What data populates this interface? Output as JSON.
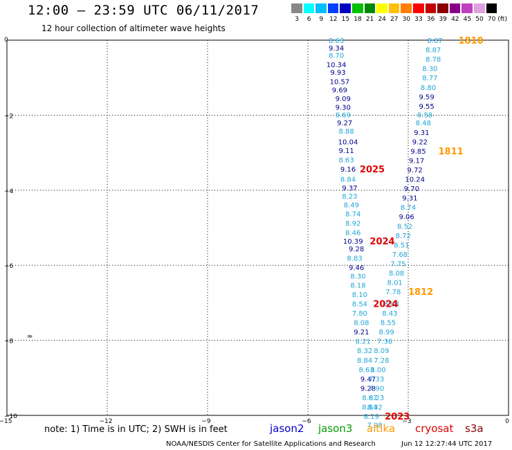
{
  "title": "12:00 – 23:59 UTC 06/11/2017",
  "subtitle": "12 hour collection of altimeter wave heights",
  "color_scale": {
    "unit": "(ft)",
    "swatches": [
      {
        "label": "3",
        "color": "#888888"
      },
      {
        "label": "6",
        "color": "#00ffff"
      },
      {
        "label": "9",
        "color": "#00bfff"
      },
      {
        "label": "12",
        "color": "#0040ff"
      },
      {
        "label": "15",
        "color": "#0000c0"
      },
      {
        "label": "18",
        "color": "#00c000"
      },
      {
        "label": "21",
        "color": "#008800"
      },
      {
        "label": "24",
        "color": "#ffff00"
      },
      {
        "label": "27",
        "color": "#ffc000"
      },
      {
        "label": "30",
        "color": "#ff8000"
      },
      {
        "label": "33",
        "color": "#ff0000"
      },
      {
        "label": "36",
        "color": "#c00000"
      },
      {
        "label": "39",
        "color": "#880000"
      },
      {
        "label": "42",
        "color": "#880088"
      },
      {
        "label": "45",
        "color": "#c040c0"
      },
      {
        "label": "50",
        "color": "#e0a0e0"
      },
      {
        "label": "70",
        "color": "#000000"
      }
    ]
  },
  "map": {
    "lon_range": [
      -15,
      0
    ],
    "lat_range": [
      -10,
      0
    ],
    "x_ticks": [
      -15,
      -12,
      -9,
      -6,
      -3,
      0
    ],
    "y_ticks": [
      0,
      -2,
      -4,
      -6,
      -8,
      -10
    ],
    "x_tick_labels": [
      "−15",
      "−12",
      "−9",
      "−6",
      "−3",
      "0"
    ],
    "y_tick_labels": [
      "0",
      "−2",
      "−4",
      "−6",
      "−8",
      "−10"
    ],
    "land_marker": {
      "lon": -14.4,
      "lat": -7.95,
      "label": "≈"
    }
  },
  "tracks": {
    "left": {
      "color_light": "#1fa5d8",
      "color_dark": "#00008b",
      "points": [
        {
          "v": "8.63",
          "lon": -5.15,
          "lat": 0.0,
          "c": "light"
        },
        {
          "v": "9.34",
          "lon": -5.15,
          "lat": -0.2,
          "c": "dark"
        },
        {
          "v": "8.70",
          "lon": -5.15,
          "lat": -0.4,
          "c": "light"
        },
        {
          "v": "10.34",
          "lon": -5.15,
          "lat": -0.65,
          "c": "dark"
        },
        {
          "v": "9.93",
          "lon": -5.1,
          "lat": -0.85,
          "c": "dark"
        },
        {
          "v": "10.57",
          "lon": -5.05,
          "lat": -1.1,
          "c": "dark"
        },
        {
          "v": "9.69",
          "lon": -5.05,
          "lat": -1.32,
          "c": "dark"
        },
        {
          "v": "9.09",
          "lon": -4.95,
          "lat": -1.55,
          "c": "dark"
        },
        {
          "v": "9.30",
          "lon": -4.95,
          "lat": -1.78,
          "c": "dark"
        },
        {
          "v": "8.69",
          "lon": -4.95,
          "lat": -1.98,
          "c": "light"
        },
        {
          "v": "9.27",
          "lon": -4.9,
          "lat": -2.2,
          "c": "dark"
        },
        {
          "v": "8.88",
          "lon": -4.85,
          "lat": -2.42,
          "c": "light"
        },
        {
          "v": "10.04",
          "lon": -4.8,
          "lat": -2.7,
          "c": "dark"
        },
        {
          "v": "9.11",
          "lon": -4.85,
          "lat": -2.93,
          "c": "dark"
        },
        {
          "v": "8.63",
          "lon": -4.85,
          "lat": -3.18,
          "c": "light"
        },
        {
          "v": "9.16",
          "lon": -4.8,
          "lat": -3.43,
          "c": "dark"
        },
        {
          "v": "8.84",
          "lon": -4.8,
          "lat": -3.7,
          "c": "light"
        },
        {
          "v": "9.37",
          "lon": -4.75,
          "lat": -3.93,
          "c": "dark"
        },
        {
          "v": "8.23",
          "lon": -4.75,
          "lat": -4.15,
          "c": "light"
        },
        {
          "v": "8.49",
          "lon": -4.7,
          "lat": -4.38,
          "c": "light"
        },
        {
          "v": "8.74",
          "lon": -4.65,
          "lat": -4.62,
          "c": "light"
        },
        {
          "v": "8.92",
          "lon": -4.65,
          "lat": -4.87,
          "c": "light"
        },
        {
          "v": "8.46",
          "lon": -4.65,
          "lat": -5.12,
          "c": "light"
        },
        {
          "v": "10.39",
          "lon": -4.65,
          "lat": -5.35,
          "c": "dark"
        },
        {
          "v": "9.28",
          "lon": -4.55,
          "lat": -5.55,
          "c": "dark"
        },
        {
          "v": "8.83",
          "lon": -4.6,
          "lat": -5.8,
          "c": "light"
        },
        {
          "v": "9.46",
          "lon": -4.55,
          "lat": -6.05,
          "c": "dark"
        },
        {
          "v": "8.30",
          "lon": -4.5,
          "lat": -6.28,
          "c": "light"
        },
        {
          "v": "8.18",
          "lon": -4.5,
          "lat": -6.52,
          "c": "light"
        },
        {
          "v": "8.10",
          "lon": -4.45,
          "lat": -6.77,
          "c": "light"
        },
        {
          "v": "8.54",
          "lon": -4.45,
          "lat": -7.02,
          "c": "light"
        },
        {
          "v": "7.80",
          "lon": -4.45,
          "lat": -7.27,
          "c": "light"
        },
        {
          "v": "8.08",
          "lon": -4.4,
          "lat": -7.52,
          "c": "light"
        },
        {
          "v": "9.21",
          "lon": -4.4,
          "lat": -7.77,
          "c": "dark"
        },
        {
          "v": "8.21",
          "lon": -4.35,
          "lat": -8.02,
          "c": "light"
        },
        {
          "v": "8.32",
          "lon": -4.3,
          "lat": -8.27,
          "c": "light"
        },
        {
          "v": "8.84",
          "lon": -4.3,
          "lat": -8.52,
          "c": "light"
        },
        {
          "v": "8.63",
          "lon": -4.25,
          "lat": -8.77,
          "c": "light"
        },
        {
          "v": "9.47",
          "lon": -4.2,
          "lat": -9.02,
          "c": "dark"
        },
        {
          "v": "9.28",
          "lon": -4.2,
          "lat": -9.27,
          "c": "dark"
        },
        {
          "v": "8.67",
          "lon": -4.15,
          "lat": -9.52,
          "c": "light"
        },
        {
          "v": "8.84",
          "lon": -4.15,
          "lat": -9.77,
          "c": "light"
        },
        {
          "v": "8.19",
          "lon": -4.1,
          "lat": -10.02,
          "c": "light"
        },
        {
          "v": "7.98",
          "lon": -4.0,
          "lat": -10.25,
          "c": "light"
        }
      ]
    },
    "mid": {
      "points": [
        {
          "v": "8.88",
          "lon": -3.5,
          "lat": -7.02,
          "c": "light"
        },
        {
          "v": "8.43",
          "lon": -3.55,
          "lat": -7.27,
          "c": "light"
        },
        {
          "v": "8.55",
          "lon": -3.6,
          "lat": -7.52,
          "c": "light"
        },
        {
          "v": "8.99",
          "lon": -3.65,
          "lat": -7.77,
          "c": "light"
        },
        {
          "v": "7.36",
          "lon": -3.7,
          "lat": -8.02,
          "c": "light"
        },
        {
          "v": "8.09",
          "lon": -3.8,
          "lat": -8.27,
          "c": "light"
        },
        {
          "v": "7.28",
          "lon": -3.8,
          "lat": -8.52,
          "c": "light"
        },
        {
          "v": "8.00",
          "lon": -3.9,
          "lat": -8.77,
          "c": "light"
        },
        {
          "v": "7.33",
          "lon": -3.95,
          "lat": -9.02,
          "c": "light"
        },
        {
          "v": "7.90",
          "lon": -3.95,
          "lat": -9.27,
          "c": "light"
        },
        {
          "v": "8.23",
          "lon": -3.95,
          "lat": -9.52,
          "c": "light"
        },
        {
          "v": "8.32",
          "lon": -4.0,
          "lat": -9.77,
          "c": "light"
        }
      ]
    },
    "right": {
      "points": [
        {
          "v": "8.87",
          "lon": -2.2,
          "lat": 0.0,
          "c": "light"
        },
        {
          "v": "8.87",
          "lon": -2.25,
          "lat": -0.25,
          "c": "light"
        },
        {
          "v": "8.78",
          "lon": -2.25,
          "lat": -0.5,
          "c": "light"
        },
        {
          "v": "8.30",
          "lon": -2.35,
          "lat": -0.75,
          "c": "light"
        },
        {
          "v": "8.77",
          "lon": -2.35,
          "lat": -1.0,
          "c": "light"
        },
        {
          "v": "8.80",
          "lon": -2.4,
          "lat": -1.25,
          "c": "light"
        },
        {
          "v": "9.59",
          "lon": -2.45,
          "lat": -1.5,
          "c": "dark"
        },
        {
          "v": "9.55",
          "lon": -2.45,
          "lat": -1.75,
          "c": "dark"
        },
        {
          "v": "8.58",
          "lon": -2.5,
          "lat": -1.98,
          "c": "light"
        },
        {
          "v": "8.48",
          "lon": -2.55,
          "lat": -2.2,
          "c": "light"
        },
        {
          "v": "9.31",
          "lon": -2.6,
          "lat": -2.45,
          "c": "dark"
        },
        {
          "v": "9.22",
          "lon": -2.65,
          "lat": -2.7,
          "c": "dark"
        },
        {
          "v": "9.85",
          "lon": -2.7,
          "lat": -2.95,
          "c": "dark"
        },
        {
          "v": "9.17",
          "lon": -2.75,
          "lat": -3.2,
          "c": "dark"
        },
        {
          "v": "9.72",
          "lon": -2.8,
          "lat": -3.45,
          "c": "dark"
        },
        {
          "v": "10.24",
          "lon": -2.8,
          "lat": -3.7,
          "c": "dark"
        },
        {
          "v": "9.70",
          "lon": -2.9,
          "lat": -3.95,
          "c": "dark"
        },
        {
          "v": "9.31",
          "lon": -2.95,
          "lat": -4.2,
          "c": "dark"
        },
        {
          "v": "8.74",
          "lon": -3.0,
          "lat": -4.45,
          "c": "light"
        },
        {
          "v": "9.06",
          "lon": -3.05,
          "lat": -4.7,
          "c": "dark"
        },
        {
          "v": "8.52",
          "lon": -3.1,
          "lat": -4.95,
          "c": "light"
        },
        {
          "v": "8.72",
          "lon": -3.15,
          "lat": -5.2,
          "c": "light"
        },
        {
          "v": "8.51",
          "lon": -3.2,
          "lat": -5.45,
          "c": "light"
        },
        {
          "v": "7.68",
          "lon": -3.25,
          "lat": -5.7,
          "c": "light"
        },
        {
          "v": "7.75",
          "lon": -3.3,
          "lat": -5.95,
          "c": "light"
        },
        {
          "v": "8.08",
          "lon": -3.35,
          "lat": -6.2,
          "c": "light"
        },
        {
          "v": "8.01",
          "lon": -3.4,
          "lat": -6.45,
          "c": "light"
        },
        {
          "v": "7.78",
          "lon": -3.45,
          "lat": -6.7,
          "c": "light"
        }
      ]
    }
  },
  "time_labels": [
    {
      "text": "1810",
      "lon": -1.5,
      "lat": 0.0,
      "color": "#ff9900"
    },
    {
      "text": "1811",
      "lon": -2.1,
      "lat": -2.95,
      "color": "#ff9900"
    },
    {
      "text": "1812",
      "lon": -3.0,
      "lat": -6.7,
      "color": "#ff9900"
    },
    {
      "text": "2025",
      "lon": -4.45,
      "lat": -3.43,
      "color": "#e00000"
    },
    {
      "text": "2024",
      "lon": -4.15,
      "lat": -5.35,
      "color": "#e00000"
    },
    {
      "text": "2024",
      "lon": -4.05,
      "lat": -7.02,
      "color": "#e00000"
    },
    {
      "text": "2023",
      "lon": -3.7,
      "lat": -10.02,
      "color": "#e00000"
    }
  ],
  "note": "note:  1) Time is in UTC;  2) SWH is in feet",
  "satellites": [
    {
      "name": "jason2",
      "color": "#0000cc"
    },
    {
      "name": "jason3",
      "color": "#009900"
    },
    {
      "name": "altika",
      "color": "#ff9900"
    },
    {
      "name": "cryosat",
      "color": "#dd0000"
    },
    {
      "name": "s3a",
      "color": "#880000"
    }
  ],
  "credit": "NOAA/NESDIS Center for Satellite Applications and Research",
  "timestamp": "Jun 12 12:27:44 UTC 2017"
}
